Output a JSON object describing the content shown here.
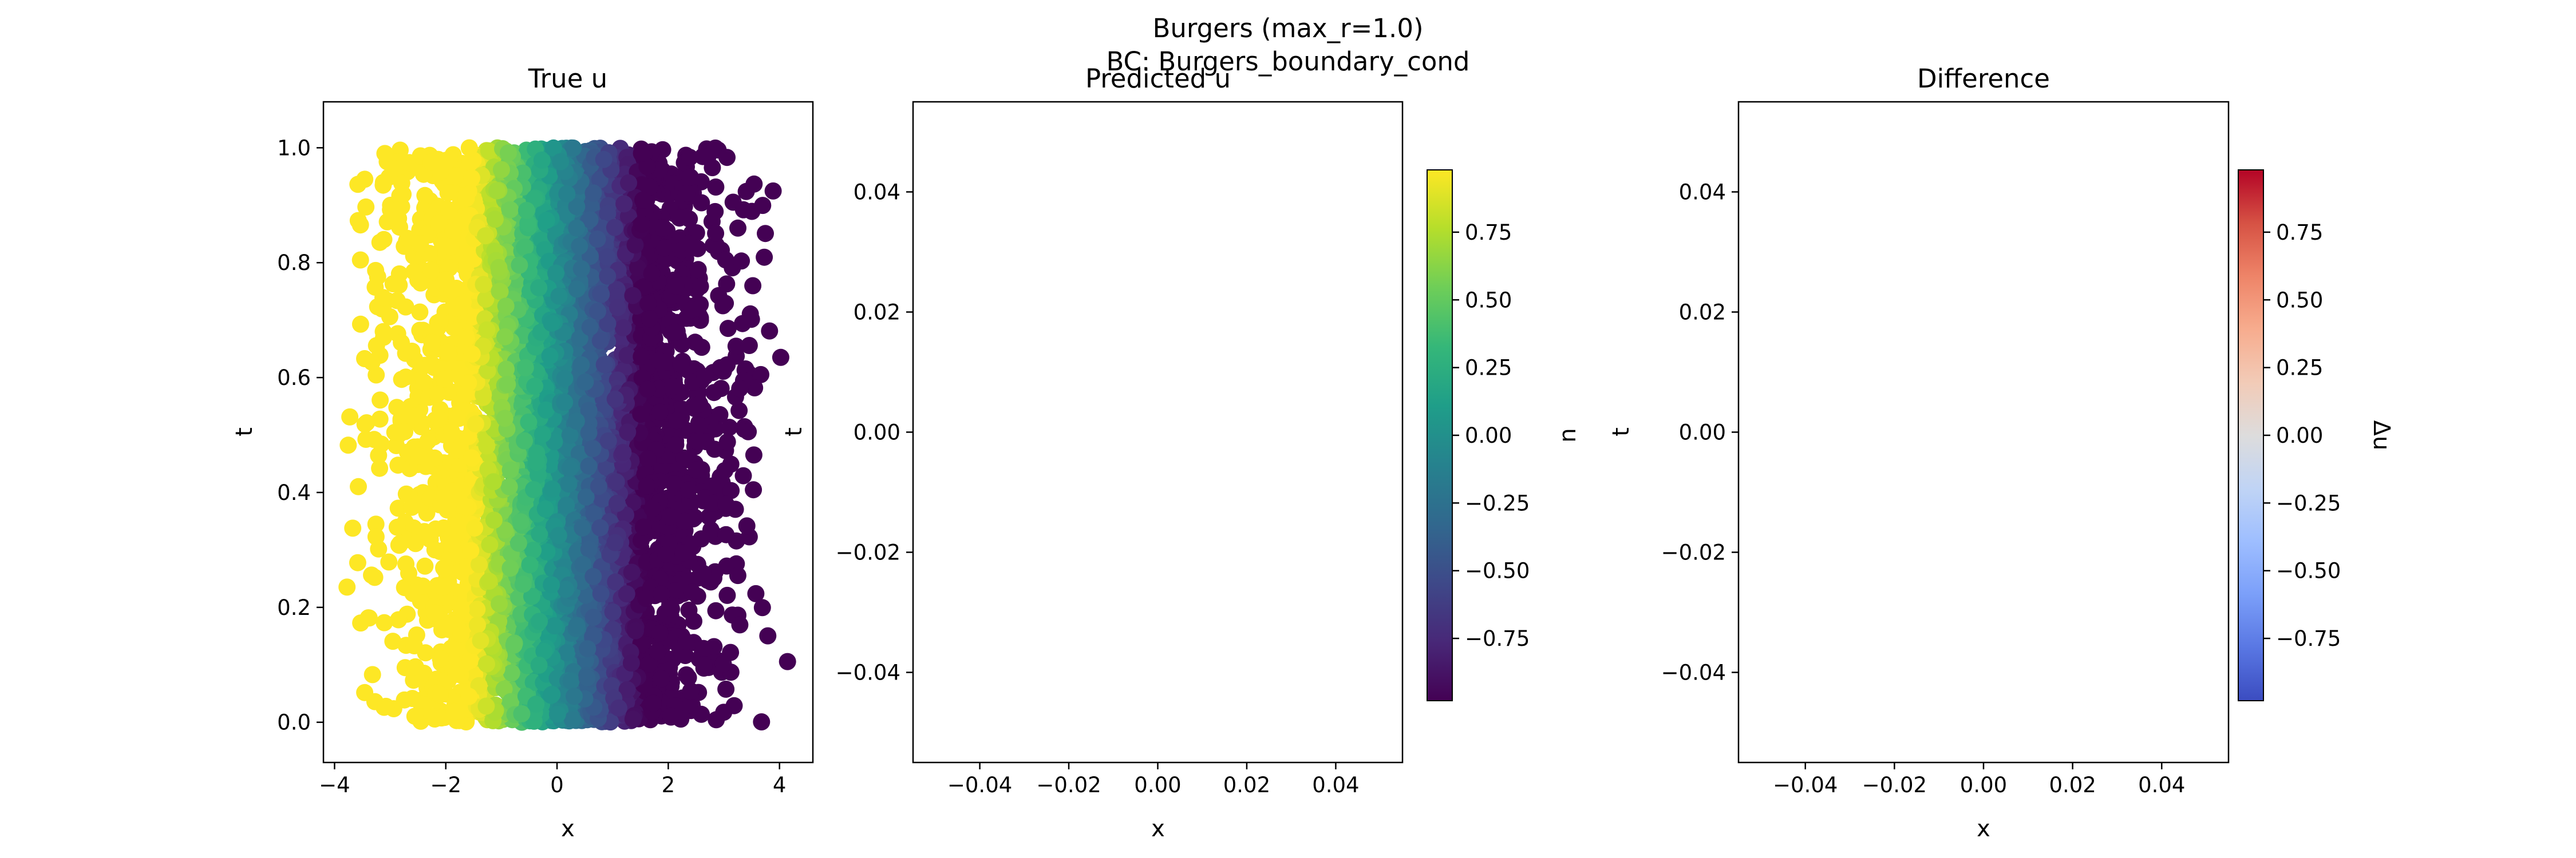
{
  "figure": {
    "title_line1": "Burgers (max_r=1.0)",
    "title_line2": "BC: Burgers_boundary_cond"
  },
  "chart_data": [
    {
      "type": "scatter",
      "title": "True u",
      "xlabel": "x",
      "ylabel": "t",
      "xlim": [
        -4.2,
        4.6
      ],
      "ylim": [
        -0.07,
        1.08
      ],
      "xticks": [
        -4,
        -2,
        0,
        2,
        4
      ],
      "xtick_labels": [
        "−4",
        "−2",
        "0",
        "2",
        "4"
      ],
      "yticks": [
        0.0,
        0.2,
        0.4,
        0.6,
        0.8,
        1.0
      ],
      "ytick_labels": [
        "0.0",
        "0.2",
        "0.4",
        "0.6",
        "0.8",
        "1.0"
      ],
      "colormap": "viridis",
      "color_variable": "u",
      "color_range": [
        -1,
        1
      ],
      "x_range_of_points": [
        -3.8,
        4.2
      ],
      "t_range_of_points": [
        0.0,
        1.0
      ],
      "point_density": "dense",
      "transition": {
        "u_high": 1,
        "u_low": -1,
        "center_x": 0,
        "from_x": -1.5,
        "to_x": 1.5
      }
    },
    {
      "type": "scatter",
      "title": "Predicted u",
      "xlabel": "x",
      "ylabel": "t",
      "xlim": [
        -0.055,
        0.055
      ],
      "ylim": [
        -0.055,
        0.055
      ],
      "xticks": [
        -0.04,
        -0.02,
        0.0,
        0.02,
        0.04
      ],
      "xtick_labels": [
        "−0.04",
        "−0.02",
        "0.00",
        "0.02",
        "0.04"
      ],
      "yticks": [
        -0.04,
        -0.02,
        0.0,
        0.02,
        0.04
      ],
      "ytick_labels": [
        "−0.04",
        "−0.02",
        "0.00",
        "0.02",
        "0.04"
      ],
      "points": [],
      "colorbar": {
        "label": "u",
        "colormap": "viridis",
        "range": [
          -0.98,
          0.98
        ],
        "ticks": [
          -0.75,
          -0.5,
          -0.25,
          0.0,
          0.25,
          0.5,
          0.75
        ],
        "tick_labels": [
          "−0.75",
          "−0.50",
          "−0.25",
          "0.00",
          "0.25",
          "0.50",
          "0.75"
        ]
      }
    },
    {
      "type": "scatter",
      "title": "Difference",
      "xlabel": "x",
      "ylabel": "t",
      "xlim": [
        -0.055,
        0.055
      ],
      "ylim": [
        -0.055,
        0.055
      ],
      "xticks": [
        -0.04,
        -0.02,
        0.0,
        0.02,
        0.04
      ],
      "xtick_labels": [
        "−0.04",
        "−0.02",
        "0.00",
        "0.02",
        "0.04"
      ],
      "yticks": [
        -0.04,
        -0.02,
        0.0,
        0.02,
        0.04
      ],
      "ytick_labels": [
        "−0.04",
        "−0.02",
        "0.00",
        "0.02",
        "0.04"
      ],
      "points": [],
      "colorbar": {
        "label": "Δu",
        "colormap": "coolwarm",
        "range": [
          -0.98,
          0.98
        ],
        "ticks": [
          -0.75,
          -0.5,
          -0.25,
          0.0,
          0.25,
          0.5,
          0.75
        ],
        "tick_labels": [
          "−0.75",
          "−0.50",
          "−0.25",
          "0.00",
          "0.25",
          "0.50",
          "0.75"
        ]
      }
    }
  ],
  "colors": {
    "viridis": [
      "#440154",
      "#482878",
      "#3e4989",
      "#31688e",
      "#26828e",
      "#1f9e89",
      "#35b779",
      "#6ece58",
      "#b5de2b",
      "#fde725"
    ],
    "coolwarm": [
      "#3b4cc0",
      "#5977e3",
      "#7b9ff9",
      "#9ebeff",
      "#c0d4f5",
      "#dddcdc",
      "#f2cbb7",
      "#f7ac8e",
      "#ee8468",
      "#d65244",
      "#b40426"
    ]
  }
}
